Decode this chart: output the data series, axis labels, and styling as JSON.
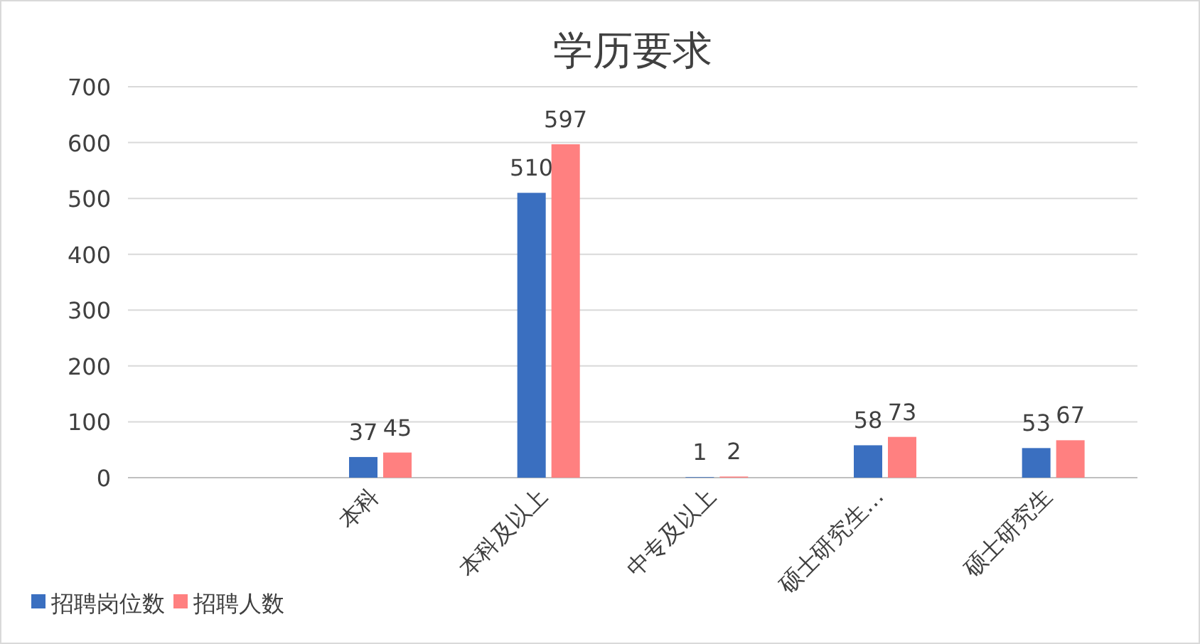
{
  "chart_data": {
    "type": "bar",
    "title": "学历要求",
    "categories": [
      null,
      "本科",
      "本科及以上",
      "中专及以上",
      "硕士研究生…",
      "硕士研究生"
    ],
    "series": [
      {
        "name": "招聘岗位数",
        "color": "#3a6fc0",
        "values": [
          null,
          37,
          510,
          1,
          58,
          53
        ]
      },
      {
        "name": "招聘人数",
        "color": "#ff8080",
        "values": [
          null,
          45,
          597,
          2,
          73,
          67
        ]
      }
    ],
    "ylim": [
      0,
      700
    ],
    "yticks": [
      0,
      100,
      200,
      300,
      400,
      500,
      600,
      700
    ],
    "grid": "y",
    "legend": "bottom left",
    "data_labels": true
  }
}
